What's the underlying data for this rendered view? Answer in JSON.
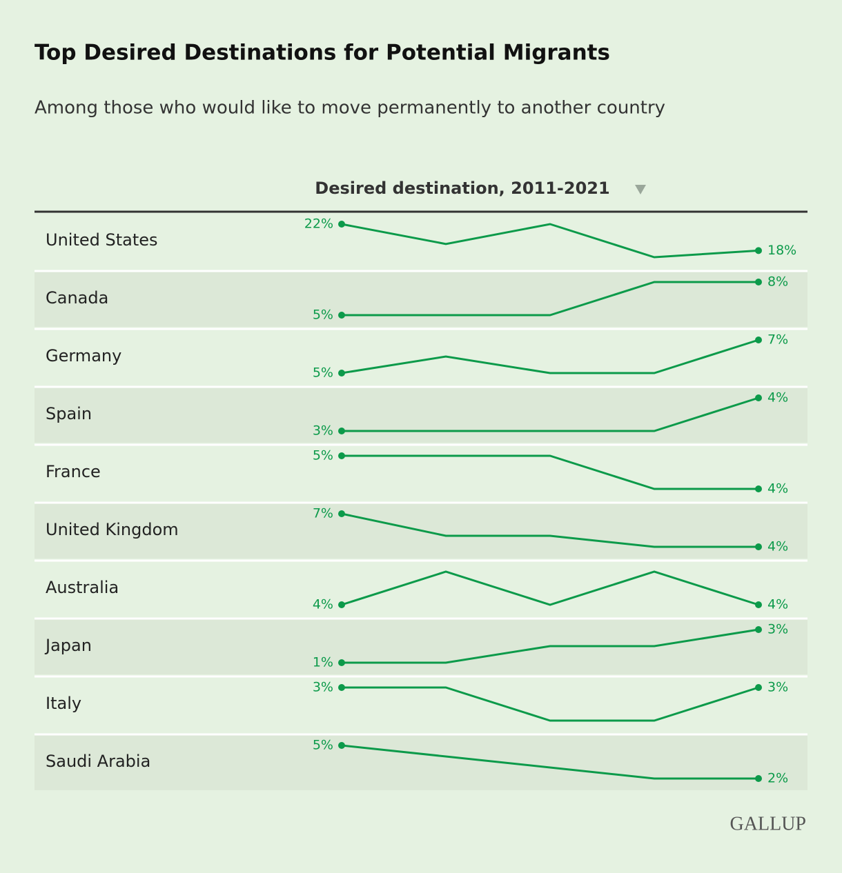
{
  "chart_data": {
    "type": "sparkline-table",
    "title": "Top Desired Destinations for Potential Migrants",
    "subtitle": "Among those who would like to move permanently to another country",
    "column_header": "Desired destination, 2011-2021",
    "color": "#0c9a4a",
    "rows": [
      {
        "name": "United States",
        "values": [
          22,
          19,
          22,
          17,
          18
        ],
        "value_labels": [
          "22%",
          null,
          null,
          null,
          "18%"
        ]
      },
      {
        "name": "Canada",
        "values": [
          5,
          5,
          5,
          8,
          8
        ],
        "value_labels": [
          "5%",
          null,
          null,
          null,
          "8%"
        ]
      },
      {
        "name": "Germany",
        "values": [
          5,
          6,
          5,
          5,
          7
        ],
        "value_labels": [
          "5%",
          null,
          null,
          null,
          "7%"
        ]
      },
      {
        "name": "Spain",
        "values": [
          3,
          3,
          3,
          3,
          4
        ],
        "value_labels": [
          "3%",
          null,
          null,
          null,
          "4%"
        ]
      },
      {
        "name": "France",
        "values": [
          5,
          5,
          5,
          4,
          4
        ],
        "value_labels": [
          "5%",
          null,
          null,
          null,
          "4%"
        ]
      },
      {
        "name": "United Kingdom",
        "values": [
          7,
          5,
          5,
          4,
          4
        ],
        "value_labels": [
          "7%",
          null,
          null,
          null,
          "4%"
        ]
      },
      {
        "name": "Australia",
        "values": [
          4,
          5,
          4,
          5,
          4
        ],
        "value_labels": [
          "4%",
          null,
          null,
          null,
          "4%"
        ]
      },
      {
        "name": "Japan",
        "values": [
          1,
          1,
          2,
          2,
          3
        ],
        "value_labels": [
          "1%",
          null,
          null,
          null,
          "3%"
        ]
      },
      {
        "name": "Italy",
        "values": [
          3,
          3,
          2,
          2,
          3
        ],
        "value_labels": [
          "3%",
          null,
          null,
          null,
          "3%"
        ]
      },
      {
        "name": "Saudi Arabia",
        "values": [
          5,
          4,
          3,
          2,
          2
        ],
        "value_labels": [
          "5%",
          null,
          null,
          null,
          "2%"
        ]
      }
    ],
    "source": "GALLUP"
  }
}
